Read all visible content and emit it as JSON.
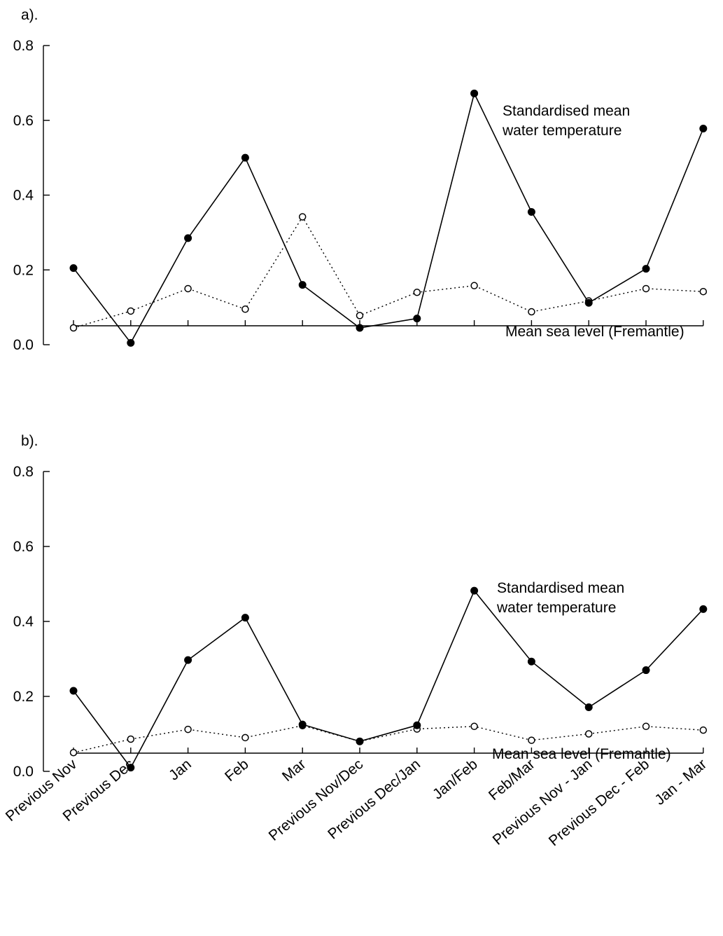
{
  "chart_data": [
    {
      "type": "line",
      "panel_label": "a).",
      "categories": [
        "Previous Nov",
        "Previous Dec",
        "Jan",
        "Feb",
        "Mar",
        "Previous Nov/Dec",
        "Previous Dec/Jan",
        "Jan/Feb",
        "Feb/Mar",
        "Previous Nov - Jan",
        "Previous Dec - Feb",
        "Jan - Mar"
      ],
      "y_ticks": [
        "0.0",
        "0.2",
        "0.4",
        "0.6",
        "0.8"
      ],
      "ylim": [
        0,
        0.8
      ],
      "grid": false,
      "series": [
        {
          "name": "Standardised mean water temperature",
          "label_lines": [
            "Standardised mean",
            "water temperature"
          ],
          "style": "solid-filled",
          "values": [
            0.205,
            0.005,
            0.285,
            0.5,
            0.16,
            0.045,
            0.07,
            0.672,
            0.355,
            0.112,
            0.203,
            0.578
          ]
        },
        {
          "name": "Mean sea level (Fremantle)",
          "label_lines": [
            "Mean sea level (Fremantle)"
          ],
          "style": "dotted-open",
          "values": [
            0.045,
            0.09,
            0.15,
            0.095,
            0.342,
            0.078,
            0.14,
            0.158,
            0.088,
            0.117,
            0.15,
            0.142
          ]
        }
      ]
    },
    {
      "type": "line",
      "panel_label": "b).",
      "categories": [
        "Previous Nov",
        "Previous Dec",
        "Jan",
        "Feb",
        "Mar",
        "Previous Nov/Dec",
        "Previous Dec/Jan",
        "Jan/Feb",
        "Feb/Mar",
        "Previous Nov - Jan",
        "Previous Dec - Feb",
        "Jan - Mar"
      ],
      "y_ticks": [
        "0.0",
        "0.2",
        "0.4",
        "0.6",
        "0.8"
      ],
      "ylim": [
        0,
        0.8
      ],
      "grid": false,
      "series": [
        {
          "name": "Standardised mean water temperature",
          "label_lines": [
            "Standardised mean",
            "water temperature"
          ],
          "style": "solid-filled",
          "values": [
            0.215,
            0.01,
            0.297,
            0.41,
            0.125,
            0.08,
            0.123,
            0.482,
            0.293,
            0.171,
            0.27,
            0.433
          ]
        },
        {
          "name": "Mean sea level (Fremantle)",
          "label_lines": [
            "Mean sea level (Fremantle)"
          ],
          "style": "dotted-open",
          "values": [
            0.05,
            0.086,
            0.112,
            0.09,
            0.122,
            0.08,
            0.113,
            0.12,
            0.083,
            0.1,
            0.12,
            0.11
          ]
        }
      ]
    }
  ]
}
